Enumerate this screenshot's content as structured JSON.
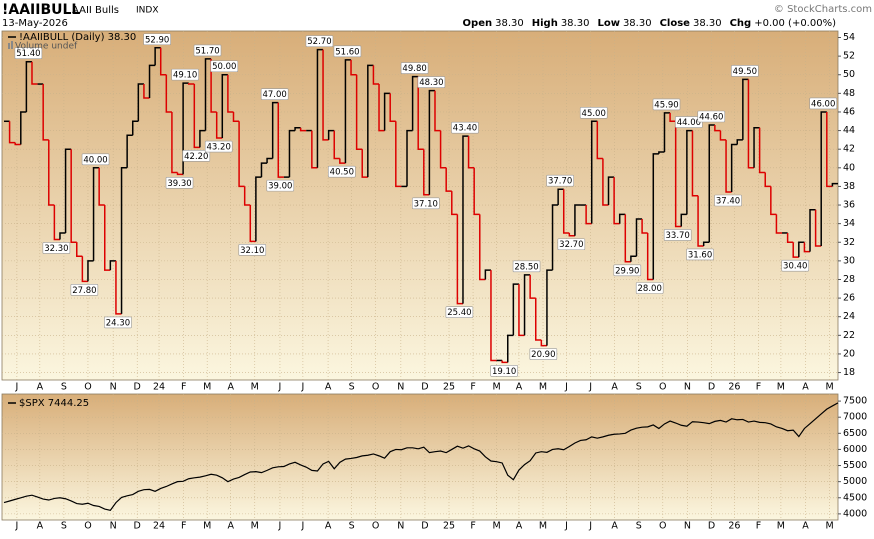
{
  "header": {
    "symbol": "!AAIIBULL",
    "name": "AAII Bulls",
    "exchange": "INDX",
    "date": "13-May-2026",
    "credit": "© StockCharts.com",
    "quote": [
      {
        "label": "Open",
        "value": "38.30"
      },
      {
        "label": "High",
        "value": "38.30"
      },
      {
        "label": "Low",
        "value": "38.30"
      },
      {
        "label": "Close",
        "value": "38.30"
      },
      {
        "label": "Chg",
        "value": "+0.00 (+0.00%)"
      }
    ]
  },
  "chart_data": [
    {
      "type": "step",
      "legend": "!AAIIBULL (Daily) 38.30",
      "volume_legend": "Volume undef",
      "up_color": "#000000",
      "down_color": "#dd0000",
      "xlim": [
        0,
        149
      ],
      "ylim": [
        17.2,
        54.7
      ],
      "yticks": [
        18,
        20,
        22,
        24,
        26,
        28,
        30,
        32,
        34,
        36,
        38,
        40,
        42,
        44,
        46,
        48,
        50,
        52,
        54
      ],
      "xticks": [
        {
          "value": 2.3,
          "label": "J"
        },
        {
          "value": 6.4,
          "label": "A"
        },
        {
          "value": 10.7,
          "label": "S"
        },
        {
          "value": 15,
          "label": "O"
        },
        {
          "value": 19.5,
          "label": "N"
        },
        {
          "value": 23.8,
          "label": "D"
        },
        {
          "value": 27.7,
          "label": "24"
        },
        {
          "value": 32.1,
          "label": "F"
        },
        {
          "value": 36.3,
          "label": "M"
        },
        {
          "value": 40.5,
          "label": "A"
        },
        {
          "value": 44.8,
          "label": "M"
        },
        {
          "value": 49.3,
          "label": "J"
        },
        {
          "value": 53.4,
          "label": "J"
        },
        {
          "value": 57.9,
          "label": "A"
        },
        {
          "value": 62.1,
          "label": "S"
        },
        {
          "value": 66.4,
          "label": "O"
        },
        {
          "value": 70.9,
          "label": "N"
        },
        {
          "value": 75.2,
          "label": "D"
        },
        {
          "value": 79.5,
          "label": "25"
        },
        {
          "value": 83.8,
          "label": "F"
        },
        {
          "value": 88,
          "label": "M"
        },
        {
          "value": 92,
          "label": "A"
        },
        {
          "value": 96.3,
          "label": "M"
        },
        {
          "value": 100.5,
          "label": "J"
        },
        {
          "value": 104.8,
          "label": "J"
        },
        {
          "value": 109.1,
          "label": "A"
        },
        {
          "value": 113.4,
          "label": "S"
        },
        {
          "value": 117.7,
          "label": "O"
        },
        {
          "value": 122.1,
          "label": "N"
        },
        {
          "value": 126.4,
          "label": "D"
        },
        {
          "value": 130.5,
          "label": "26"
        },
        {
          "value": 134.8,
          "label": "F"
        },
        {
          "value": 138.8,
          "label": "M"
        },
        {
          "value": 143.2,
          "label": "A"
        },
        {
          "value": 147.5,
          "label": "M"
        }
      ],
      "values": [
        45.0,
        42.7,
        42.5,
        46.0,
        51.4,
        49.0,
        49.0,
        43.0,
        36.0,
        32.3,
        33.0,
        42.0,
        32.0,
        30.5,
        27.8,
        30.0,
        40.0,
        36.0,
        29.0,
        30.0,
        24.3,
        40.0,
        43.5,
        45.0,
        49.0,
        47.5,
        51.0,
        52.9,
        50.0,
        46.0,
        39.5,
        39.3,
        49.1,
        49.0,
        42.2,
        44.0,
        51.7,
        46.0,
        43.2,
        50.0,
        46.0,
        45.0,
        38.0,
        36.0,
        32.1,
        39.0,
        40.5,
        41.0,
        47.0,
        39.0,
        39.0,
        44.0,
        44.3,
        44.0,
        44.0,
        40.0,
        52.7,
        43.0,
        44.0,
        41.0,
        40.5,
        51.6,
        50.0,
        42.0,
        39.0,
        51.0,
        49.0,
        44.0,
        48.0,
        45.0,
        38.0,
        38.0,
        44.0,
        49.8,
        42.0,
        37.1,
        48.3,
        44.0,
        40.0,
        37.5,
        35.0,
        25.4,
        43.4,
        40.0,
        35.0,
        28.0,
        29.0,
        19.3,
        19.3,
        19.1,
        22.0,
        27.5,
        22.0,
        28.5,
        26.0,
        21.5,
        20.9,
        29.0,
        36.0,
        37.7,
        33.0,
        32.7,
        36.0,
        36.0,
        34.0,
        45.0,
        41.0,
        36.0,
        39.0,
        34.0,
        35.0,
        29.9,
        30.5,
        34.5,
        33.0,
        28.0,
        41.5,
        41.7,
        45.9,
        45.0,
        33.7,
        35.0,
        44.0,
        37.0,
        31.6,
        32.0,
        44.6,
        44.0,
        43.0,
        37.4,
        42.5,
        43.0,
        49.5,
        40.0,
        44.3,
        39.5,
        38.0,
        35.0,
        33.0,
        33.0,
        32.0,
        30.4,
        32.0,
        31.0,
        35.5,
        31.6,
        46.0,
        38.0,
        38.3,
        38.3
      ],
      "value_labels": [
        null,
        null,
        null,
        null,
        "51.40",
        null,
        null,
        null,
        null,
        "32.30",
        null,
        null,
        null,
        null,
        "27.80",
        null,
        "40.00",
        null,
        null,
        null,
        "24.30",
        null,
        null,
        null,
        null,
        null,
        null,
        "52.90",
        null,
        null,
        null,
        "39.30",
        "49.10",
        null,
        "42.20",
        null,
        "51.70",
        null,
        "43.20",
        "50.00",
        null,
        null,
        null,
        null,
        "32.10",
        null,
        null,
        null,
        "47.00",
        "39.00",
        null,
        null,
        null,
        null,
        null,
        null,
        "52.70",
        null,
        null,
        null,
        "40.50",
        "51.60",
        null,
        null,
        null,
        null,
        null,
        null,
        null,
        null,
        null,
        null,
        null,
        "49.80",
        null,
        "37.10",
        "48.30",
        null,
        null,
        null,
        null,
        "25.40",
        "43.40",
        null,
        null,
        null,
        null,
        null,
        null,
        "19.10",
        null,
        null,
        null,
        "28.50",
        null,
        null,
        "20.90",
        null,
        null,
        "37.70",
        null,
        "32.70",
        null,
        null,
        null,
        "45.00",
        null,
        null,
        null,
        null,
        null,
        "29.90",
        null,
        null,
        null,
        "28.00",
        null,
        null,
        "45.90",
        null,
        "33.70",
        null,
        "44.00",
        null,
        "31.60",
        null,
        "44.60",
        null,
        null,
        "37.40",
        null,
        null,
        "49.50",
        null,
        null,
        null,
        null,
        null,
        null,
        null,
        null,
        "30.40",
        null,
        null,
        null,
        null,
        "46.00",
        null,
        null,
        null
      ]
    },
    {
      "type": "line",
      "legend": "$SPX 7444.25",
      "color": "#000000",
      "xlim": [
        0,
        149
      ],
      "ylim": [
        3810,
        7720
      ],
      "yticks": [
        4000,
        4500,
        5000,
        5500,
        6000,
        6500,
        7000,
        7500
      ],
      "xticks": [
        {
          "value": 2.3,
          "label": "J"
        },
        {
          "value": 6.4,
          "label": "A"
        },
        {
          "value": 10.7,
          "label": "S"
        },
        {
          "value": 15,
          "label": "O"
        },
        {
          "value": 19.5,
          "label": "N"
        },
        {
          "value": 23.8,
          "label": "D"
        },
        {
          "value": 27.7,
          "label": "24"
        },
        {
          "value": 32.1,
          "label": "F"
        },
        {
          "value": 36.3,
          "label": "M"
        },
        {
          "value": 40.5,
          "label": "A"
        },
        {
          "value": 44.8,
          "label": "M"
        },
        {
          "value": 49.3,
          "label": "J"
        },
        {
          "value": 53.4,
          "label": "J"
        },
        {
          "value": 57.9,
          "label": "A"
        },
        {
          "value": 62.1,
          "label": "S"
        },
        {
          "value": 66.4,
          "label": "O"
        },
        {
          "value": 70.9,
          "label": "N"
        },
        {
          "value": 75.2,
          "label": "D"
        },
        {
          "value": 79.5,
          "label": "25"
        },
        {
          "value": 83.8,
          "label": "F"
        },
        {
          "value": 88,
          "label": "M"
        },
        {
          "value": 92,
          "label": "A"
        },
        {
          "value": 96.3,
          "label": "M"
        },
        {
          "value": 100.5,
          "label": "J"
        },
        {
          "value": 104.8,
          "label": "J"
        },
        {
          "value": 109.1,
          "label": "A"
        },
        {
          "value": 113.4,
          "label": "S"
        },
        {
          "value": 117.7,
          "label": "O"
        },
        {
          "value": 122.1,
          "label": "N"
        },
        {
          "value": 126.4,
          "label": "D"
        },
        {
          "value": 130.5,
          "label": "26"
        },
        {
          "value": 134.8,
          "label": "F"
        },
        {
          "value": 138.8,
          "label": "M"
        },
        {
          "value": 143.2,
          "label": "A"
        },
        {
          "value": 147.5,
          "label": "M"
        }
      ],
      "values": [
        4350,
        4400,
        4450,
        4500,
        4550,
        4580,
        4520,
        4460,
        4430,
        4480,
        4500,
        4470,
        4400,
        4320,
        4300,
        4330,
        4260,
        4230,
        4150,
        4110,
        4350,
        4510,
        4560,
        4600,
        4700,
        4750,
        4760,
        4700,
        4790,
        4850,
        4930,
        5000,
        5010,
        5090,
        5120,
        5140,
        5180,
        5230,
        5200,
        5120,
        5000,
        5080,
        5130,
        5220,
        5300,
        5310,
        5280,
        5350,
        5430,
        5460,
        5470,
        5550,
        5600,
        5520,
        5450,
        5350,
        5330,
        5550,
        5630,
        5400,
        5600,
        5700,
        5720,
        5750,
        5800,
        5820,
        5860,
        5800,
        5730,
        5930,
        6000,
        5990,
        6050,
        6050,
        6020,
        6070,
        5900,
        5930,
        5950,
        5900,
        6000,
        6100,
        6040,
        6110,
        6020,
        5950,
        5770,
        5640,
        5620,
        5580,
        5200,
        5060,
        5360,
        5530,
        5650,
        5890,
        5930,
        5910,
        6000,
        6020,
        5990,
        6090,
        6200,
        6280,
        6300,
        6390,
        6350,
        6390,
        6440,
        6470,
        6480,
        6500,
        6600,
        6660,
        6690,
        6700,
        6760,
        6650,
        6790,
        6880,
        6820,
        6750,
        6720,
        6860,
        6850,
        6830,
        6800,
        6870,
        6900,
        6850,
        6950,
        6920,
        6930,
        6850,
        6880,
        6840,
        6830,
        6790,
        6700,
        6650,
        6580,
        6600,
        6400,
        6650,
        6800,
        6950,
        7100,
        7250,
        7350,
        7444.25
      ]
    }
  ]
}
